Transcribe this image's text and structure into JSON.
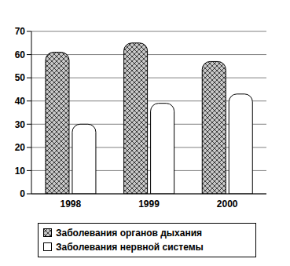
{
  "chart_data": {
    "type": "bar",
    "categories": [
      "1998",
      "1999",
      "2000"
    ],
    "series": [
      {
        "name": "Заболевания органов дыхания",
        "color": "#c8c8c8",
        "values": [
          61,
          65,
          57
        ]
      },
      {
        "name": "Заболевания нервной системы",
        "color": "#ffffff",
        "values": [
          30,
          39,
          43
        ]
      }
    ],
    "ylim": [
      0,
      70
    ],
    "yticks": [
      0,
      10,
      20,
      30,
      40,
      50,
      60,
      70
    ],
    "grid": true
  }
}
